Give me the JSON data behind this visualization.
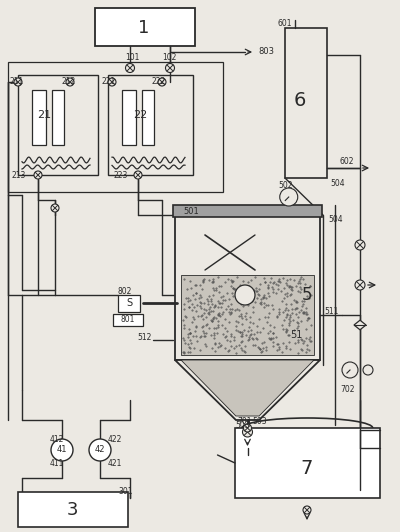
{
  "bg_color": "#ece9e3",
  "line_color": "#2a2a2a",
  "fill_light": "#c8c4bc",
  "fill_medium": "#a0a0a0",
  "white": "#ffffff"
}
